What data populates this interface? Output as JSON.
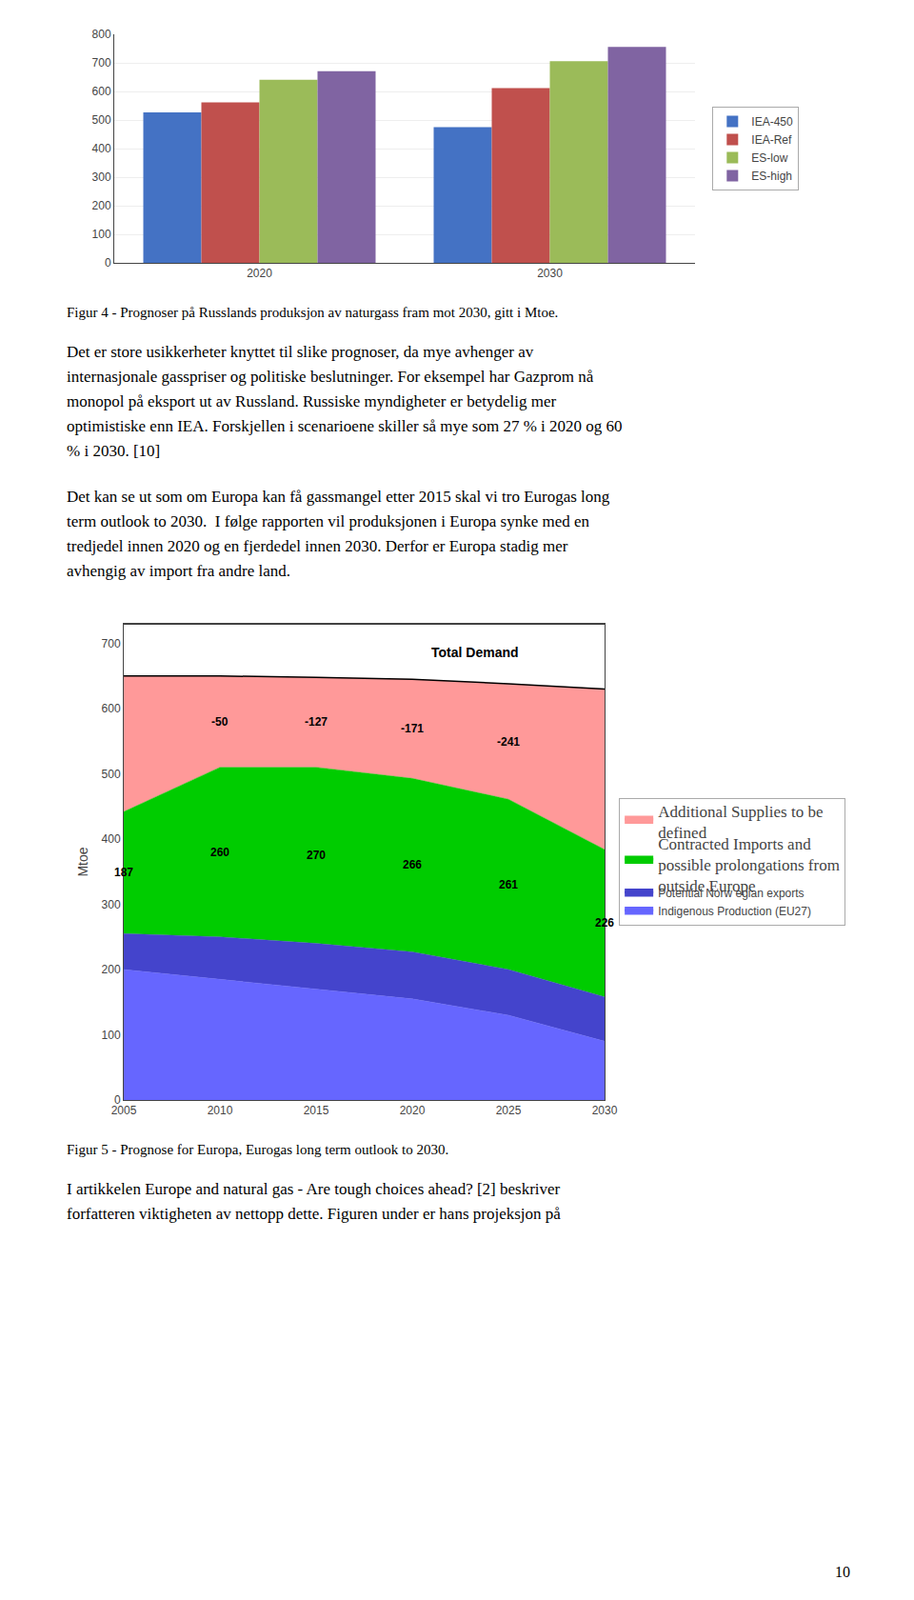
{
  "chart_data": [
    {
      "type": "bar",
      "title": "Figur 4 - Prognoser på Russlands produksjon av naturgass fram mot 2030, gitt i Mtoe.",
      "categories": [
        "2020",
        "2030"
      ],
      "series": [
        {
          "name": "IEA-450",
          "color": "#4472C4",
          "values": [
            527,
            475
          ]
        },
        {
          "name": "IEA-Ref",
          "color": "#C0504D",
          "values": [
            562,
            612
          ]
        },
        {
          "name": "ES-low",
          "color": "#9BBB59",
          "values": [
            641,
            706
          ]
        },
        {
          "name": "ES-high",
          "color": "#8064A2",
          "values": [
            671,
            756
          ]
        }
      ],
      "ylim": [
        0,
        800
      ],
      "yticks": [
        0,
        100,
        200,
        300,
        400,
        500,
        600,
        700,
        800
      ],
      "grid": true,
      "legend": "right"
    },
    {
      "type": "area",
      "title": "Figur 5 - Prognose for Europa, Eurogas long term outlook to 2030.",
      "ylabel": "Mtoe",
      "x": [
        2005,
        2010,
        2015,
        2020,
        2025,
        2030
      ],
      "xlim": [
        2005,
        2030
      ],
      "xticks": [
        2005,
        2010,
        2015,
        2020,
        2025,
        2030
      ],
      "ylim": [
        0,
        730
      ],
      "yticks": [
        0,
        100,
        200,
        300,
        400,
        500,
        600,
        700
      ],
      "stacked": true,
      "grid": false,
      "legend": "right",
      "series": [
        {
          "name": "Indigenous Production (EU27)",
          "color": "#6666FF",
          "values": [
            200,
            185,
            170,
            155,
            130,
            90
          ]
        },
        {
          "name": "Potential Norw egian exports",
          "color": "#4444CC",
          "values": [
            55,
            65,
            70,
            72,
            70,
            68
          ]
        },
        {
          "name": "Contracted Imports and\npossible prolongations from\noutside Europe",
          "color": "#00CC00",
          "values": [
            187,
            260,
            270,
            266,
            261,
            226
          ],
          "data_labels": true
        },
        {
          "name": "Additional Supplies to be\ndefined",
          "color": "#FF9999",
          "values": [
            208,
            140,
            138,
            152,
            177,
            246
          ]
        },
        {
          "type": "line",
          "color": "#000000",
          "values": [
            650,
            650,
            648,
            645,
            638,
            630
          ]
        },
        {
          "type": "line",
          "color": "#000000",
          "values": [
            730,
            730,
            730,
            730,
            730,
            730
          ]
        }
      ],
      "annotations": [
        {
          "text": "Total Demand"
        },
        {
          "x": 2010,
          "text": "-50"
        },
        {
          "x": 2015,
          "text": "-127"
        },
        {
          "x": 2020,
          "text": "-171"
        },
        {
          "x": 2025,
          "text": "-241"
        }
      ]
    }
  ],
  "paragraphs": [
    [
      "Det er store usikkerheter knyttet til slike prognoser, da mye avhenger av",
      "internasjonale gasspriser og politiske beslutninger. For eksempel har Gazprom nå",
      "monopol på eksport ut av Russland. Russiske myndigheter er betydelig mer",
      "optimistiske enn IEA. Forskjellen i scenarioene skiller så mye som 27 % i 2020 og 60",
      "% i 2030. [10]"
    ],
    [
      "Det kan se ut som om Europa kan få gassmangel etter 2015 skal vi tro Eurogas long",
      "term outlook to 2030.  I følge rapporten vil produksjonen i Europa synke med en",
      "tredjedel innen 2020 og en fjerdedel innen 2030. Derfor er Europa stadig mer",
      "avhengig av import fra andre land."
    ],
    [
      "I artikkelen Europe and natural gas - Are tough choices ahead? [2] beskriver",
      "forfatteren viktigheten av nettopp dette. Figuren under er hans projeksjon på"
    ]
  ],
  "page_number": "10"
}
